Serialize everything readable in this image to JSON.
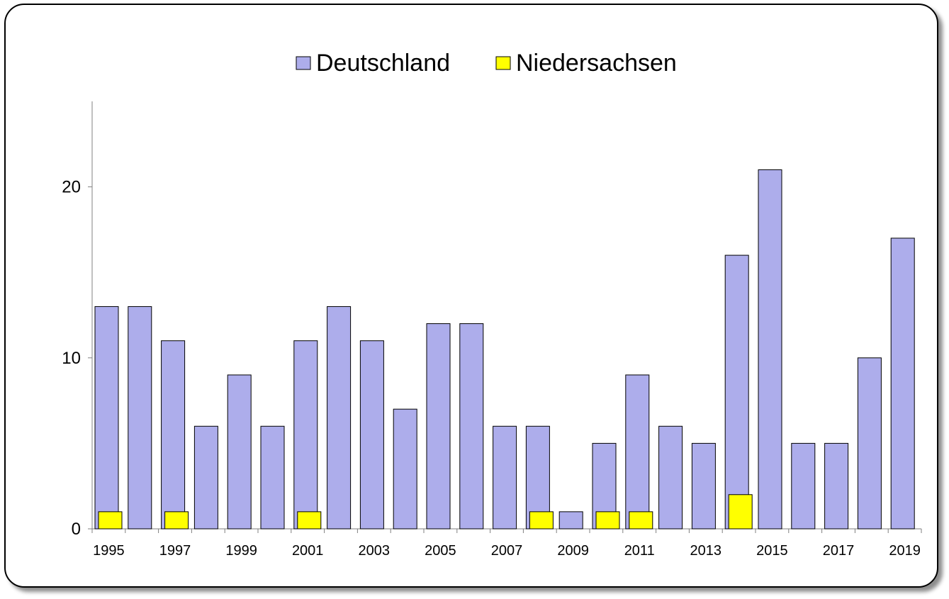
{
  "chart_data": {
    "type": "bar",
    "categories": [
      "1995",
      "1996",
      "1997",
      "1998",
      "1999",
      "2000",
      "2001",
      "2002",
      "2003",
      "2004",
      "2005",
      "2006",
      "2007",
      "2008",
      "2009",
      "2010",
      "2011",
      "2012",
      "2013",
      "2014",
      "2015",
      "2016",
      "2017",
      "2018",
      "2019"
    ],
    "x_tick_labels": [
      "1995",
      "1997",
      "1999",
      "2001",
      "2003",
      "2005",
      "2007",
      "2009",
      "2011",
      "2013",
      "2015",
      "2017",
      "2019"
    ],
    "series": [
      {
        "name": "Deutschland",
        "color": "#adadeb",
        "values": [
          13,
          13,
          11,
          6,
          9,
          6,
          11,
          13,
          11,
          7,
          12,
          12,
          6,
          6,
          1,
          5,
          9,
          6,
          5,
          16,
          21,
          5,
          5,
          10,
          17
        ]
      },
      {
        "name": "Niedersachsen",
        "color": "#ffff00",
        "values": [
          1,
          0,
          1,
          0,
          0,
          0,
          1,
          0,
          0,
          0,
          0,
          0,
          0,
          1,
          0,
          1,
          1,
          0,
          0,
          2,
          0,
          0,
          0,
          0,
          0
        ]
      }
    ],
    "y_ticks": [
      "0",
      "10",
      "20"
    ],
    "ylim": [
      0,
      25
    ],
    "legend_position": "top-center",
    "grid": false,
    "title": "",
    "xlabel": "",
    "ylabel": ""
  }
}
